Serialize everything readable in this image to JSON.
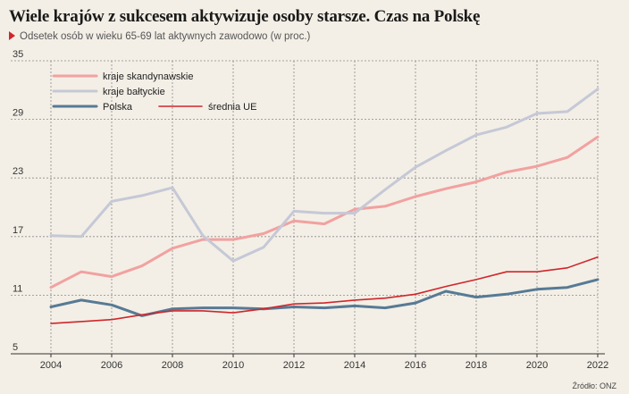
{
  "title": "Wiele krajów z sukcesem aktywizuje osoby starsze. Czas na Polskę",
  "subtitle": "Odsetek osób w wieku 65-69 lat aktywnych zawodowo (w proc.)",
  "source": "Źródło: ONZ",
  "chart_data": {
    "type": "line",
    "x": [
      2004,
      2005,
      2006,
      2007,
      2008,
      2009,
      2010,
      2011,
      2012,
      2013,
      2014,
      2015,
      2016,
      2017,
      2018,
      2019,
      2020,
      2021,
      2022
    ],
    "xticks": [
      2004,
      2006,
      2008,
      2010,
      2012,
      2014,
      2016,
      2018,
      2020,
      2022
    ],
    "yticks": [
      5,
      11,
      17,
      23,
      29,
      35
    ],
    "ylim": [
      5,
      35
    ],
    "xlim": [
      2004,
      2022
    ],
    "grid": true,
    "legend_position": "top-left",
    "series": [
      {
        "name": "kraje skandynawskie",
        "color": "#f2a1a0",
        "width": 3,
        "values": [
          11.8,
          13.4,
          12.9,
          14.0,
          15.8,
          16.7,
          16.7,
          17.3,
          18.6,
          18.3,
          19.8,
          20.1,
          21.1,
          21.9,
          22.6,
          23.6,
          24.2,
          25.1,
          27.2
        ]
      },
      {
        "name": "kraje bałtyckie",
        "color": "#c5c8d6",
        "width": 3,
        "values": [
          17.1,
          17.0,
          20.6,
          21.2,
          22.0,
          17.1,
          14.5,
          15.9,
          19.6,
          19.4,
          19.4,
          21.8,
          24.1,
          25.8,
          27.4,
          28.2,
          29.6,
          29.8,
          32.1
        ]
      },
      {
        "name": "Polska",
        "color": "#577a95",
        "width": 3,
        "values": [
          9.8,
          10.5,
          10.0,
          8.9,
          9.6,
          9.7,
          9.7,
          9.6,
          9.8,
          9.7,
          9.9,
          9.7,
          10.2,
          11.4,
          10.8,
          11.1,
          11.6,
          11.8,
          12.6
        ]
      },
      {
        "name": "średnia UE",
        "color": "#d0262b",
        "width": 1.6,
        "values": [
          8.1,
          8.3,
          8.5,
          9.0,
          9.4,
          9.4,
          9.2,
          9.6,
          10.1,
          10.2,
          10.5,
          10.7,
          11.1,
          11.9,
          12.6,
          13.4,
          13.4,
          13.8,
          14.9
        ]
      }
    ]
  }
}
